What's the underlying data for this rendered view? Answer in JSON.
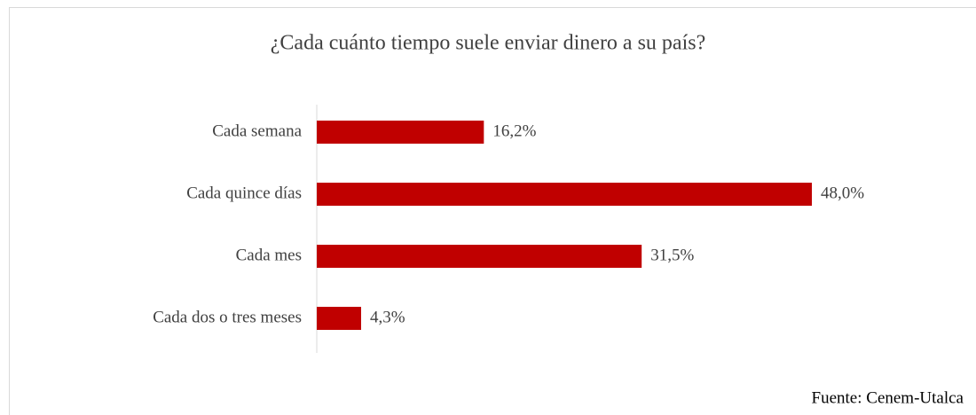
{
  "chart_data": {
    "type": "bar",
    "orientation": "horizontal",
    "title": "¿Cada cuánto tiempo suele enviar dinero a su país?",
    "categories": [
      "Cada semana",
      "Cada quince días",
      "Cada mes",
      "Cada dos o tres meses"
    ],
    "values": [
      16.2,
      48.0,
      31.5,
      4.3
    ],
    "value_labels": [
      "16,2%",
      "48,0%",
      "31,5%",
      "4,3%"
    ],
    "color": "#c00000",
    "source": "Fuente: Cenem-Utalca"
  }
}
